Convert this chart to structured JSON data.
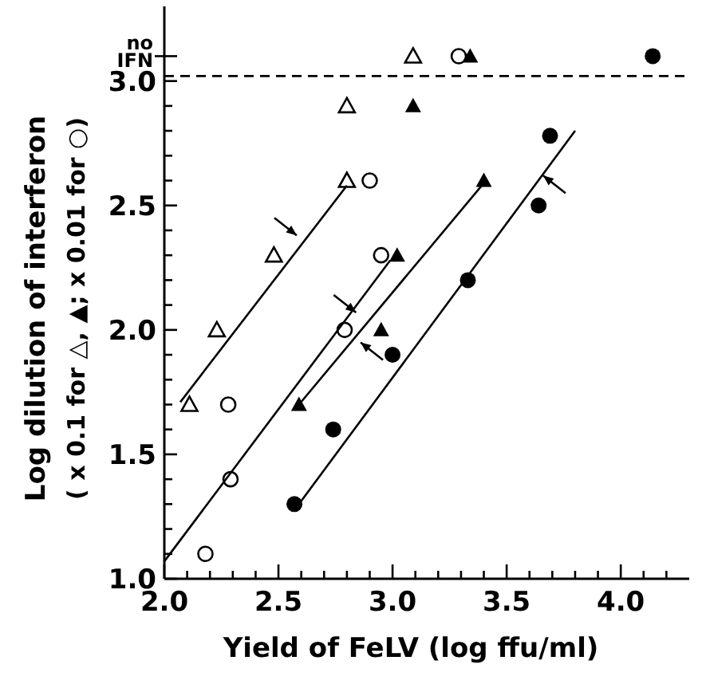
{
  "chart_data": {
    "type": "scatter",
    "xlabel": "Yield of FeLV (log ffu/ml)",
    "ylabel": "Log dilution of interferon\n( x 0.1 for △, ▲; x 0.01 for ○)",
    "xlim": [
      2.0,
      4.3
    ],
    "ylim": [
      1.0,
      3.3
    ],
    "xticks": [
      {
        "value": 2,
        "label": "2.0"
      },
      {
        "value": 2.1,
        "label": null
      },
      {
        "value": 2.2,
        "label": null
      },
      {
        "value": 2.3,
        "label": null
      },
      {
        "value": 2.4,
        "label": null
      },
      2.5,
      {
        "value": 2.6,
        "label": null
      },
      {
        "value": 2.7,
        "label": null
      },
      {
        "value": 2.8,
        "label": null
      },
      {
        "value": 2.9,
        "label": null
      },
      {
        "value": 3,
        "label": "3.0"
      },
      {
        "value": 3.1,
        "label": null
      },
      {
        "value": 3.2,
        "label": null
      },
      {
        "value": 3.3,
        "label": null
      },
      {
        "value": 3.4,
        "label": null
      },
      3.5,
      {
        "value": 3.6,
        "label": null
      },
      {
        "value": 3.7,
        "label": null
      },
      {
        "value": 3.8,
        "label": null
      },
      {
        "value": 3.9,
        "label": null
      },
      {
        "value": 4,
        "label": "4.0"
      },
      {
        "value": 4.1,
        "label": null
      },
      {
        "value": 4.2,
        "label": null
      }
    ],
    "yticks": [
      {
        "value": 1,
        "label": "1.0"
      },
      {
        "value": 1.1,
        "label": null
      },
      {
        "value": 1.2,
        "label": null
      },
      {
        "value": 1.3,
        "label": null
      },
      {
        "value": 1.4,
        "label": null
      },
      1.5,
      {
        "value": 1.6,
        "label": null
      },
      {
        "value": 1.7,
        "label": null
      },
      {
        "value": 1.8,
        "label": null
      },
      {
        "value": 1.9,
        "label": null
      },
      {
        "value": 2,
        "label": "2.0"
      },
      {
        "value": 2.1,
        "label": null
      },
      {
        "value": 2.2,
        "label": null
      },
      {
        "value": 2.3,
        "label": null
      },
      {
        "value": 2.4,
        "label": null
      },
      2.5,
      {
        "value": 2.6,
        "label": null
      },
      {
        "value": 2.7,
        "label": null
      },
      {
        "value": 2.8,
        "label": null
      },
      {
        "value": 2.9,
        "label": null
      },
      {
        "value": 3,
        "label": "3.0"
      },
      {
        "value": 3.1,
        "label": "no IFN"
      }
    ],
    "ref_lines": [
      {
        "axis": "y",
        "value": 3.02,
        "line_style": "dashed",
        "color": "#000000"
      }
    ],
    "series": [
      {
        "type": "scatter",
        "marker": "triangle-open",
        "color": "#000000",
        "x": [
          3.09,
          2.8,
          2.8,
          2.48,
          2.23,
          2.11
        ],
        "values": [
          3.1,
          2.9,
          2.6,
          2.3,
          2.0,
          1.7
        ]
      },
      {
        "type": "scatter",
        "marker": "circle-open",
        "color": "#000000",
        "x": [
          3.29,
          2.9,
          2.95,
          2.79,
          2.28,
          2.29,
          2.18
        ],
        "values": [
          3.1,
          2.6,
          2.3,
          2.0,
          1.7,
          1.4,
          1.1
        ]
      },
      {
        "type": "scatter",
        "marker": "triangle",
        "color": "#000000",
        "x": [
          3.34,
          3.09,
          3.4,
          3.02,
          2.95,
          2.59
        ],
        "values": [
          3.1,
          2.9,
          2.6,
          2.3,
          2.0,
          1.7
        ]
      },
      {
        "type": "scatter",
        "marker": "circle",
        "color": "#000000",
        "x": [
          4.14,
          3.69,
          3.64,
          3.33,
          3.0,
          2.74,
          2.57
        ],
        "values": [
          3.1,
          2.78,
          2.5,
          2.2,
          1.9,
          1.6,
          1.3
        ]
      },
      {
        "type": "line",
        "marker": "none",
        "color": "#000000",
        "x": [
          2.07,
          2.8
        ],
        "values": [
          1.71,
          2.58
        ]
      },
      {
        "type": "line",
        "marker": "none",
        "color": "#000000",
        "x": [
          2.0,
          2.99
        ],
        "values": [
          1.07,
          2.28
        ]
      },
      {
        "type": "line",
        "marker": "none",
        "color": "#000000",
        "x": [
          2.59,
          3.4
        ],
        "values": [
          1.7,
          2.59
        ]
      },
      {
        "type": "line",
        "marker": "none",
        "color": "#000000",
        "x": [
          2.59,
          3.8
        ],
        "values": [
          1.3,
          2.8
        ]
      }
    ]
  }
}
